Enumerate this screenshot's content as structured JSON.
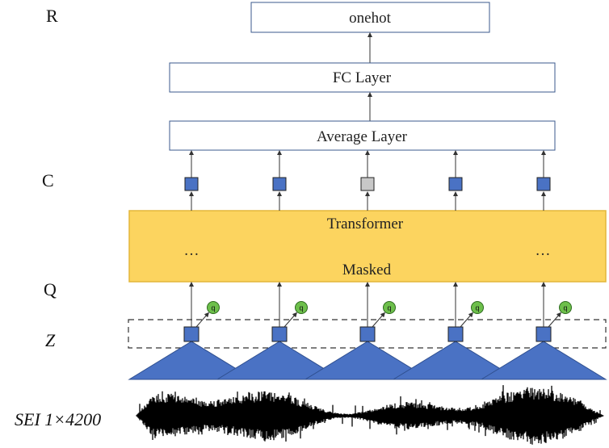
{
  "row_labels": {
    "r": "R",
    "c": "C",
    "q": "Q",
    "z": "Z",
    "signal": "SEI  1×4200"
  },
  "boxes": {
    "onehot": "onehot",
    "fc": "FC Layer",
    "average": "Average  Layer",
    "transformer_top": "Transformer",
    "transformer_bottom": "Masked",
    "ellipsis_left": "…",
    "ellipsis_right": "…"
  },
  "quantizer_symbol": "q",
  "columns": [
    {
      "c_token": "normal"
    },
    {
      "c_token": "normal"
    },
    {
      "c_token": "masked"
    },
    {
      "c_token": "normal"
    },
    {
      "c_token": "normal"
    }
  ],
  "colors": {
    "feature_blue": "#4a72c4",
    "masked_gray": "#c8c8c8",
    "transformer_fill": "#fcd45f",
    "transformer_stroke": "#e3b63a",
    "quantizer_green": "#6dbf4b",
    "box_stroke": "#3b5a8c",
    "signal": "#000000"
  }
}
